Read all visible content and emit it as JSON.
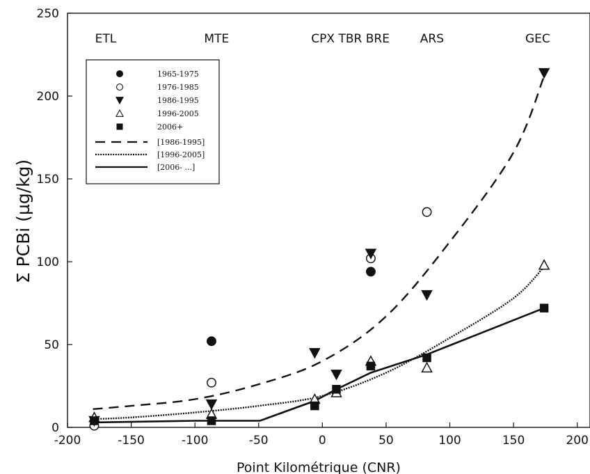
{
  "chart_data": {
    "type": "scatter",
    "title": "",
    "xlabel": "Point Kilométrique (CNR)",
    "ylabel": "Σ PCBi (µg/kg)",
    "xlim": [
      -200,
      210
    ],
    "ylim": [
      0,
      250
    ],
    "xticks": [
      -200,
      -150,
      -100,
      -50,
      0,
      50,
      100,
      150,
      200
    ],
    "yticks": [
      0,
      50,
      100,
      150,
      200,
      250
    ],
    "grid": false,
    "legend_position": "top-left",
    "sites": [
      {
        "label": "ETL",
        "x": -170
      },
      {
        "label": "MTE",
        "x": -83
      },
      {
        "label": "CPX TBR BRE",
        "x": 22
      },
      {
        "label": "ARS",
        "x": 86
      },
      {
        "label": "GEC",
        "x": 169
      }
    ],
    "series": [
      {
        "name": "1965-1975",
        "marker": "circle-filled",
        "points": [
          [
            -87,
            52
          ],
          [
            38,
            94
          ]
        ]
      },
      {
        "name": "1976-1985",
        "marker": "circle-open",
        "points": [
          [
            -179,
            1
          ],
          [
            -87,
            27
          ],
          [
            38,
            102
          ],
          [
            82,
            130
          ]
        ]
      },
      {
        "name": "1986-1995",
        "marker": "triangle-down-filled",
        "points": [
          [
            -179,
            4
          ],
          [
            -87,
            14
          ],
          [
            -6,
            45
          ],
          [
            11,
            32
          ],
          [
            38,
            105
          ],
          [
            82,
            80
          ],
          [
            174,
            214
          ]
        ]
      },
      {
        "name": "1996-2005",
        "marker": "triangle-up-open",
        "points": [
          [
            -179,
            6
          ],
          [
            -87,
            8
          ],
          [
            -6,
            17
          ],
          [
            11,
            21
          ],
          [
            38,
            40
          ],
          [
            82,
            36
          ],
          [
            174,
            98
          ]
        ]
      },
      {
        "name": "2006+",
        "marker": "square-filled",
        "points": [
          [
            -179,
            4
          ],
          [
            -87,
            4
          ],
          [
            -6,
            13
          ],
          [
            11,
            23
          ],
          [
            38,
            37
          ],
          [
            82,
            42
          ],
          [
            174,
            72
          ]
        ]
      }
    ],
    "fits": [
      {
        "name": "[1986-1995]",
        "style": "dashed",
        "points": [
          [
            -180,
            11
          ],
          [
            -150,
            13
          ],
          [
            -100,
            17
          ],
          [
            -50,
            26
          ],
          [
            0,
            40
          ],
          [
            50,
            67
          ],
          [
            100,
            112
          ],
          [
            150,
            166
          ],
          [
            174,
            212
          ]
        ]
      },
      {
        "name": "[1996-2005]",
        "style": "dotted",
        "points": [
          [
            -180,
            5
          ],
          [
            -150,
            6
          ],
          [
            -100,
            9
          ],
          [
            -50,
            13
          ],
          [
            0,
            19
          ],
          [
            50,
            33
          ],
          [
            100,
            54
          ],
          [
            150,
            78
          ],
          [
            174,
            97
          ]
        ]
      },
      {
        "name": "[2006- ...]",
        "style": "solid",
        "points": [
          [
            -180,
            3
          ],
          [
            -100,
            4
          ],
          [
            -49,
            4
          ],
          [
            -6,
            16
          ],
          [
            11,
            23
          ],
          [
            38,
            33
          ],
          [
            82,
            44
          ],
          [
            174,
            72
          ]
        ]
      }
    ]
  }
}
